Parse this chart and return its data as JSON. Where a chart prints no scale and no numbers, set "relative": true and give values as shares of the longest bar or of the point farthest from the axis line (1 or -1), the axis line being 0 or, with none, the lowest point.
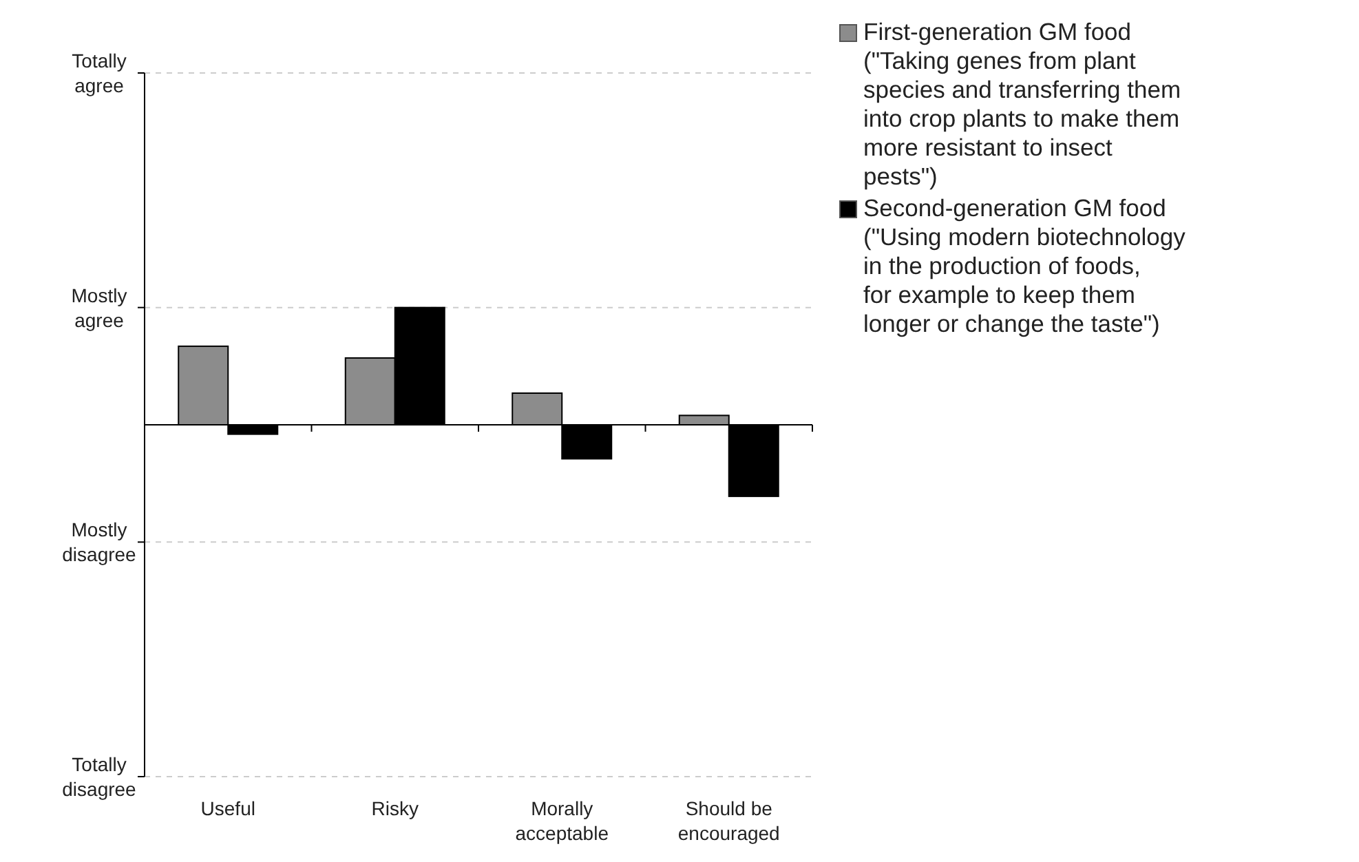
{
  "chart_data": {
    "type": "bar",
    "categories": [
      "Useful",
      "Risky",
      "Morally acceptable",
      "Should be encouraged"
    ],
    "series": [
      {
        "name": "First-generation GM food (\"Taking genes from plant species and transferring them into crop plants to make them more resistant to insect pests\")",
        "color": "#8c8c8c",
        "values": [
          0.67,
          0.57,
          0.27,
          0.08
        ]
      },
      {
        "name": "Second-generation GM food (\"Using modern biotechnology in the production of foods, for example to keep them longer or change the taste\")",
        "color": "#000000",
        "values": [
          -0.08,
          1,
          -0.29,
          -0.61
        ]
      }
    ],
    "relative": true,
    "annotations": [
      "Totally agree",
      "Mostly agree",
      "Mostly disagree",
      "Totally disagree"
    ],
    "legend": "top right"
  }
}
